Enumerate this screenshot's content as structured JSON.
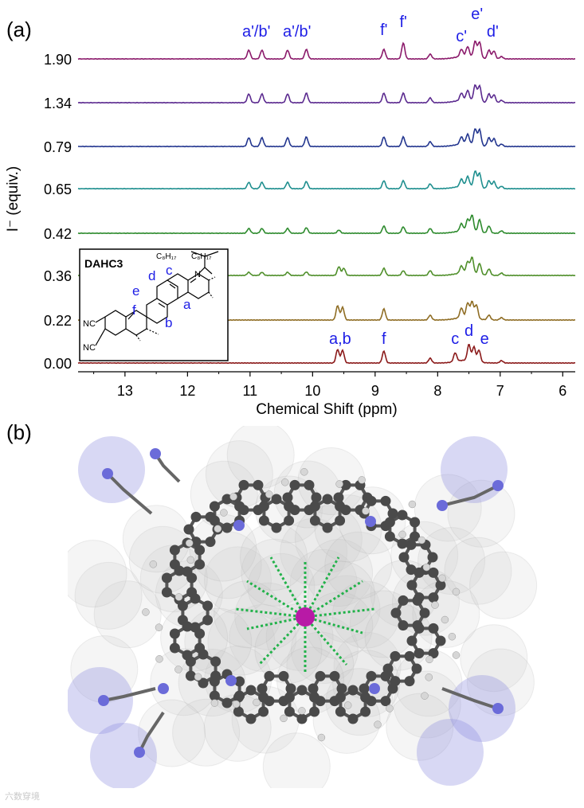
{
  "panel_a_label": "(a)",
  "panel_b_label": "(b)",
  "watermark": "六数穿境",
  "colors": {
    "accent_blue": "#1e1ee6",
    "ion": "#b81aa6",
    "contact_lines": "#22b24a",
    "carbon": "#4a4a4a",
    "nitrogen": "#6b6bd9",
    "hydrogen": "#d6d6d6"
  },
  "chart_data": {
    "type": "line",
    "xlabel": "Chemical Shift (ppm)",
    "ylabel": "I⁻ (equiv.)",
    "xlim": [
      13.75,
      5.8
    ],
    "x_reversed": true,
    "x_ticks": [
      "13",
      "12",
      "11",
      "10",
      "9",
      "8",
      "7",
      "6"
    ],
    "grid": false,
    "series": [
      {
        "tick_label": "1.90",
        "color": "#8b1a6b",
        "peaks": [
          [
            11.02,
            0.55
          ],
          [
            10.81,
            0.55
          ],
          [
            10.4,
            0.55
          ],
          [
            10.1,
            0.6
          ],
          [
            8.86,
            0.6
          ],
          [
            8.55,
            1.0
          ],
          [
            8.12,
            0.3
          ],
          [
            7.62,
            0.45
          ],
          [
            7.52,
            0.6
          ],
          [
            7.4,
            1.0
          ],
          [
            7.33,
            1.0
          ],
          [
            7.18,
            0.55
          ],
          [
            7.1,
            0.5
          ],
          [
            6.98,
            0.15
          ]
        ]
      },
      {
        "tick_label": "1.34",
        "color": "#5b2a8f",
        "peaks": [
          [
            11.02,
            0.55
          ],
          [
            10.81,
            0.55
          ],
          [
            10.4,
            0.55
          ],
          [
            10.1,
            0.6
          ],
          [
            8.86,
            0.6
          ],
          [
            8.55,
            0.6
          ],
          [
            8.12,
            0.3
          ],
          [
            7.62,
            0.45
          ],
          [
            7.52,
            0.6
          ],
          [
            7.4,
            1.0
          ],
          [
            7.33,
            1.0
          ],
          [
            7.18,
            0.55
          ],
          [
            7.1,
            0.5
          ],
          [
            6.98,
            0.15
          ]
        ]
      },
      {
        "tick_label": "0.79",
        "color": "#23368f",
        "peaks": [
          [
            11.02,
            0.55
          ],
          [
            10.81,
            0.55
          ],
          [
            10.4,
            0.55
          ],
          [
            10.1,
            0.6
          ],
          [
            8.86,
            0.6
          ],
          [
            8.55,
            0.6
          ],
          [
            8.12,
            0.3
          ],
          [
            7.62,
            0.45
          ],
          [
            7.52,
            0.6
          ],
          [
            7.4,
            1.0
          ],
          [
            7.33,
            1.0
          ],
          [
            7.18,
            0.55
          ],
          [
            7.1,
            0.5
          ],
          [
            6.98,
            0.15
          ]
        ]
      },
      {
        "tick_label": "0.65",
        "color": "#1f8f8f",
        "peaks": [
          [
            11.02,
            0.4
          ],
          [
            10.81,
            0.4
          ],
          [
            10.4,
            0.4
          ],
          [
            10.1,
            0.45
          ],
          [
            8.86,
            0.5
          ],
          [
            8.55,
            0.5
          ],
          [
            8.12,
            0.3
          ],
          [
            7.62,
            0.45
          ],
          [
            7.52,
            0.6
          ],
          [
            7.4,
            1.0
          ],
          [
            7.33,
            0.9
          ],
          [
            7.18,
            0.5
          ],
          [
            7.1,
            0.45
          ],
          [
            6.98,
            0.15
          ]
        ]
      },
      {
        "tick_label": "0.42",
        "color": "#2e8b2e",
        "peaks": [
          [
            11.02,
            0.3
          ],
          [
            10.81,
            0.3
          ],
          [
            10.4,
            0.3
          ],
          [
            10.1,
            0.35
          ],
          [
            9.58,
            0.2
          ],
          [
            8.86,
            0.45
          ],
          [
            8.55,
            0.4
          ],
          [
            8.12,
            0.3
          ],
          [
            7.62,
            0.45
          ],
          [
            7.52,
            0.7
          ],
          [
            7.45,
            1.0
          ],
          [
            7.33,
            0.8
          ],
          [
            7.18,
            0.45
          ],
          [
            6.98,
            0.15
          ]
        ]
      },
      {
        "tick_label": "0.36",
        "color": "#4f8f2a",
        "peaks": [
          [
            11.02,
            0.2
          ],
          [
            10.81,
            0.2
          ],
          [
            10.4,
            0.2
          ],
          [
            10.1,
            0.22
          ],
          [
            9.58,
            0.55
          ],
          [
            9.5,
            0.45
          ],
          [
            8.86,
            0.45
          ],
          [
            8.55,
            0.3
          ],
          [
            8.12,
            0.3
          ],
          [
            7.62,
            0.45
          ],
          [
            7.52,
            0.7
          ],
          [
            7.45,
            1.0
          ],
          [
            7.33,
            0.7
          ],
          [
            7.18,
            0.4
          ],
          [
            6.98,
            0.15
          ]
        ]
      },
      {
        "tick_label": "0.22",
        "color": "#8f6d24",
        "peaks": [
          [
            9.6,
            0.9
          ],
          [
            9.52,
            0.8
          ],
          [
            8.86,
            0.7
          ],
          [
            8.12,
            0.3
          ],
          [
            7.62,
            0.6
          ],
          [
            7.52,
            0.9
          ],
          [
            7.45,
            1.0
          ],
          [
            7.38,
            0.85
          ],
          [
            7.18,
            0.3
          ],
          [
            6.98,
            0.15
          ]
        ]
      },
      {
        "tick_label": "0.00",
        "color": "#8b1a1a",
        "peaks": [
          [
            9.6,
            0.85
          ],
          [
            9.52,
            0.8
          ],
          [
            8.86,
            0.75
          ],
          [
            8.12,
            0.3
          ],
          [
            7.72,
            0.55
          ],
          [
            7.5,
            1.0
          ],
          [
            7.42,
            0.9
          ],
          [
            7.34,
            0.75
          ],
          [
            6.98,
            0.15
          ]
        ]
      }
    ],
    "annotations": [
      {
        "text": "a'/b'",
        "ppm": 10.9,
        "trace": "1.90",
        "color": "#1e1ee6"
      },
      {
        "text": "a'/b'",
        "ppm": 10.25,
        "trace": "1.90",
        "color": "#1e1ee6"
      },
      {
        "text": "f'",
        "ppm": 8.86,
        "trace": "1.90",
        "color": "#1e1ee6"
      },
      {
        "text": "f'",
        "ppm": 8.55,
        "trace": "1.90",
        "color": "#1e1ee6"
      },
      {
        "text": "c'",
        "ppm": 7.62,
        "trace": "1.90",
        "color": "#1e1ee6"
      },
      {
        "text": "e'",
        "ppm": 7.37,
        "trace": "1.90",
        "color": "#1e1ee6"
      },
      {
        "text": "d'",
        "ppm": 7.12,
        "trace": "1.90",
        "color": "#1e1ee6"
      },
      {
        "text": "a,b",
        "ppm": 9.56,
        "trace": "0.00",
        "color": "#1e1ee6"
      },
      {
        "text": "f",
        "ppm": 8.86,
        "trace": "0.00",
        "color": "#1e1ee6"
      },
      {
        "text": "c",
        "ppm": 7.72,
        "trace": "0.00",
        "color": "#1e1ee6"
      },
      {
        "text": "d",
        "ppm": 7.5,
        "trace": "0.00",
        "color": "#1e1ee6"
      },
      {
        "text": "e",
        "ppm": 7.25,
        "trace": "0.00",
        "color": "#1e1ee6"
      }
    ]
  },
  "inset": {
    "title": "DAHC3",
    "alkyl_left": "C₈H₁₇",
    "alkyl_right": "C₈H₁₇",
    "atom_n": "N",
    "cn_top": "NC",
    "cn_bottom": "NC",
    "proton_labels": [
      "a",
      "b",
      "c",
      "d",
      "e",
      "f"
    ]
  }
}
